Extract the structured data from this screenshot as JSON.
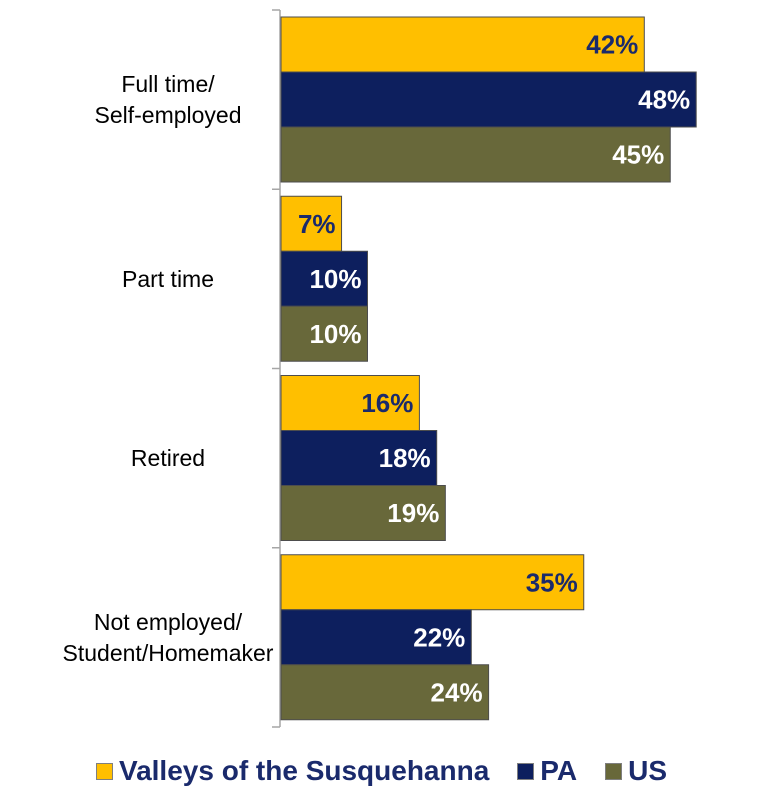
{
  "chart_data": {
    "type": "bar",
    "orientation": "horizontal",
    "categories": [
      "Full time/\nSelf-employed",
      "Part time",
      "Retired",
      "Not employed/\nStudent/Homemaker"
    ],
    "series": [
      {
        "name": "Valleys of the Susquehanna",
        "color": "#ffbf00",
        "label_color": "#1a2a6c",
        "values": [
          42,
          7,
          16,
          35
        ]
      },
      {
        "name": "PA",
        "color": "#0d1f5e",
        "label_color": "#ffffff",
        "values": [
          48,
          10,
          18,
          22
        ]
      },
      {
        "name": "US",
        "color": "#68683a",
        "label_color": "#ffffff",
        "values": [
          45,
          10,
          19,
          24
        ]
      }
    ],
    "value_suffix": "%",
    "xlim": [
      0,
      55
    ],
    "grid": false,
    "legend_position": "bottom",
    "title": "",
    "xlabel": "",
    "ylabel": ""
  }
}
